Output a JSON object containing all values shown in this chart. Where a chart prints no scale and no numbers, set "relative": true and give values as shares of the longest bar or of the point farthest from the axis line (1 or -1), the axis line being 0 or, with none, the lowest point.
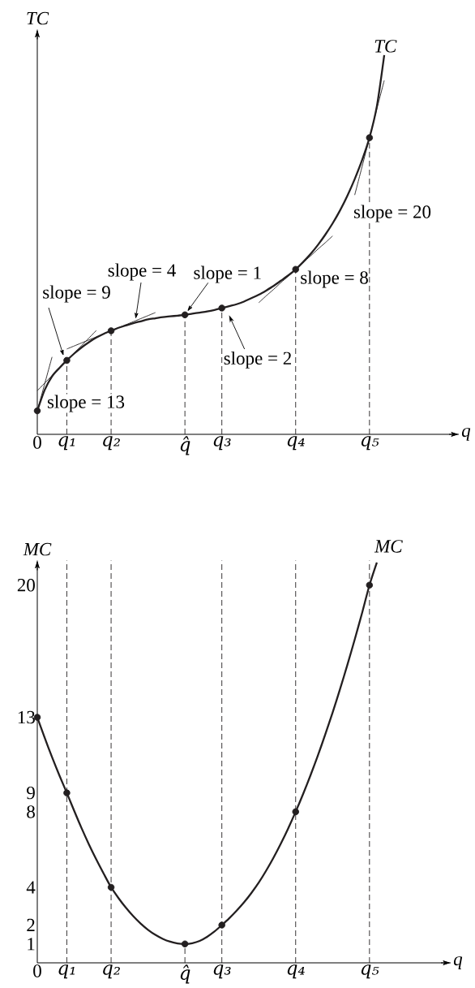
{
  "chart_data": [
    {
      "type": "line",
      "relative": true,
      "xlabel": "q",
      "ylabel": "TC",
      "categories": [
        "0",
        null,
        null,
        null,
        "q₁",
        null,
        null,
        null,
        null,
        null,
        "q₂",
        null,
        null,
        null,
        null,
        null,
        null,
        null,
        null,
        null,
        "q̂",
        null,
        null,
        null,
        null,
        "q₃",
        null,
        null,
        null,
        null,
        null,
        null,
        null,
        null,
        null,
        "q₄",
        null,
        null,
        null,
        null,
        null,
        null,
        null,
        null,
        null,
        "q₅",
        null,
        null
      ],
      "series": [
        {
          "color": "#231f20",
          "line_style": "solid",
          "marker": "none",
          "values": [
            0.062,
            0.133,
            0.204,
            null,
            null,
            null,
            null,
            null,
            null,
            null,
            null,
            null,
            null,
            null,
            null,
            null,
            null,
            null,
            null,
            null,
            null,
            null,
            null,
            null,
            null,
            null,
            null,
            null,
            null,
            null,
            null,
            null,
            null,
            null,
            null,
            null,
            null,
            null,
            null,
            null,
            null,
            null,
            null,
            null,
            null,
            null,
            null,
            null
          ]
        },
        {
          "color": "#231f20",
          "line_style": "solid",
          "marker": "none",
          "values": [
            0.115,
            0.135,
            0.155,
            0.175,
            0.195,
            0.214,
            0.234,
            0.254,
            0.274,
            null,
            null,
            null,
            null,
            null,
            null,
            null,
            null,
            null,
            null,
            null,
            null,
            null,
            null,
            null,
            null,
            null,
            null,
            null,
            null,
            null,
            null,
            null,
            null,
            null,
            null,
            null,
            null,
            null,
            null,
            null,
            null,
            null,
            null,
            null,
            null,
            null,
            null,
            null
          ]
        },
        {
          "color": "#231f20",
          "line_style": "solid",
          "marker": "none",
          "values": [
            null,
            null,
            null,
            null,
            0.225,
            0.233,
            0.241,
            0.249,
            0.257,
            0.265,
            0.273,
            0.281,
            0.289,
            0.297,
            0.305,
            0.313,
            0.321,
            null,
            null,
            null,
            null,
            null,
            null,
            null,
            null,
            null,
            null,
            null,
            null,
            null,
            null,
            null,
            null,
            null,
            null,
            null,
            null,
            null,
            null,
            null,
            null,
            null,
            null,
            null,
            null,
            null,
            null,
            null
          ]
        },
        {
          "color": "#231f20",
          "line_style": "solid",
          "marker": "none",
          "values": [
            null,
            null,
            null,
            null,
            null,
            null,
            null,
            null,
            null,
            null,
            null,
            null,
            null,
            null,
            null,
            null,
            null,
            null,
            null,
            null,
            null,
            null,
            null,
            null,
            null,
            null,
            null,
            null,
            null,
            null,
            0.347,
            0.365,
            0.382,
            0.4,
            0.417,
            0.435,
            0.453,
            0.47,
            0.488,
            0.505,
            0.523,
            null,
            null,
            null,
            null,
            null,
            null,
            null
          ]
        },
        {
          "color": "#231f20",
          "line_style": "solid",
          "marker": "none",
          "values": [
            null,
            null,
            null,
            null,
            null,
            null,
            null,
            null,
            null,
            null,
            null,
            null,
            null,
            null,
            null,
            null,
            null,
            null,
            null,
            null,
            null,
            null,
            null,
            null,
            null,
            null,
            null,
            null,
            null,
            null,
            null,
            null,
            null,
            null,
            null,
            null,
            null,
            null,
            null,
            null,
            null,
            null,
            null,
            0.631,
            0.706,
            0.782,
            0.858,
            0.933
          ]
        },
        {
          "name": "TC",
          "color": "#231f20",
          "line_style": "solid",
          "marker": "none",
          "values": [
            0.062,
            0.117,
            0.153,
            0.175,
            0.195,
            0.213,
            0.229,
            0.243,
            0.255,
            0.265,
            0.273,
            0.281,
            0.287,
            0.293,
            0.298,
            0.303,
            0.306,
            0.309,
            0.311,
            0.313,
            0.315,
            0.318,
            0.321,
            0.324,
            0.328,
            0.333,
            0.338,
            0.343,
            0.35,
            0.359,
            0.368,
            0.379,
            0.391,
            0.405,
            0.419,
            0.435,
            0.454,
            0.475,
            0.499,
            0.526,
            0.556,
            0.59,
            0.629,
            0.673,
            0.723,
            0.782,
            0.865,
            1.0
          ]
        },
        {
          "type": "lollipop",
          "color": "#231f20",
          "line_style": "dashed",
          "marker": "circle",
          "values": [
            null,
            null,
            null,
            null,
            0.195,
            null,
            null,
            null,
            null,
            null,
            0.273,
            null,
            null,
            null,
            null,
            null,
            null,
            null,
            null,
            null,
            0.315,
            null,
            null,
            null,
            null,
            0.333,
            null,
            null,
            null,
            null,
            null,
            null,
            null,
            null,
            null,
            0.435,
            null,
            null,
            null,
            null,
            null,
            null,
            null,
            null,
            null,
            0.782,
            null,
            null
          ]
        },
        {
          "type": "scatter",
          "color": "#231f20",
          "marker": "circle",
          "values": [
            0.062,
            null,
            null,
            null,
            null,
            null,
            null,
            null,
            null,
            null,
            null,
            null,
            null,
            null,
            null,
            null,
            null,
            null,
            null,
            null,
            null,
            null,
            null,
            null,
            null,
            null,
            null,
            null,
            null,
            null,
            null,
            null,
            null,
            null,
            null,
            null,
            null,
            null,
            null,
            null,
            null,
            null,
            null,
            null,
            null,
            null,
            null,
            null
          ]
        }
      ],
      "annotations": [
        {
          "text": "slope = 13",
          "x": "0",
          "y": 0.062
        },
        "slope = 9",
        "slope = 4",
        {
          "text": "slope = 1",
          "x": "q̂",
          "y": 0.315
        },
        {
          "text": "slope = 2",
          "x": "q₃",
          "y": 0.333
        },
        {
          "text": "slope = 8",
          "x": "q₄",
          "y": 0.435
        },
        "slope = 20"
      ]
    },
    {
      "type": "line",
      "xlabel": "q",
      "ylabel": "MC",
      "ylim": [
        0,
        21.3
      ],
      "yticks": [
        1,
        2,
        4,
        8,
        9,
        13,
        20
      ],
      "categories": [
        "0",
        null,
        null,
        null,
        "q₁",
        null,
        null,
        null,
        null,
        null,
        "q₂",
        null,
        null,
        null,
        null,
        null,
        null,
        null,
        null,
        null,
        "q̂",
        null,
        null,
        null,
        null,
        "q₃",
        null,
        null,
        null,
        null,
        null,
        null,
        null,
        null,
        null,
        "q₄",
        null,
        null,
        null,
        null,
        null,
        null,
        null,
        null,
        null,
        "q₅",
        null,
        null
      ],
      "ref_lines": [
        {
          "axis": "x",
          "value": "q₁",
          "color": "#231f20",
          "line_style": "dashed"
        },
        {
          "axis": "x",
          "value": "q₂",
          "color": "#231f20",
          "line_style": "dashed"
        },
        {
          "axis": "x",
          "value": "q₃",
          "color": "#231f20",
          "line_style": "dashed"
        },
        {
          "axis": "x",
          "value": "q₄",
          "color": "#231f20",
          "line_style": "dashed"
        },
        {
          "axis": "x",
          "value": "q₅",
          "color": "#231f20",
          "line_style": "dashed"
        }
      ],
      "series": [
        {
          "name": "MC",
          "color": "#231f20",
          "line_style": "solid",
          "marker": "none",
          "values": [
            13,
            11.92,
            10.89,
            9.92,
            9,
            8.05,
            7.13,
            6.27,
            5.47,
            4.72,
            4,
            3.43,
            2.92,
            2.47,
            2.08,
            1.75,
            1.48,
            1.27,
            1.12,
            1.03,
            1,
            1.04,
            1.16,
            1.38,
            1.66,
            2,
            2.36,
            2.76,
            3.2,
            3.7,
            4.25,
            4.88,
            5.57,
            6.32,
            7.13,
            8,
            8.93,
            9.92,
            10.97,
            12.08,
            13.25,
            14.48,
            15.77,
            17.12,
            18.53,
            20,
            21.2,
            null
          ]
        },
        {
          "type": "lollipop",
          "color": "#231f20",
          "line_style": "dashed",
          "marker": "circle",
          "values": [
            null,
            null,
            null,
            null,
            null,
            null,
            null,
            null,
            null,
            null,
            null,
            null,
            null,
            null,
            null,
            null,
            null,
            null,
            null,
            null,
            1,
            null,
            null,
            null,
            null,
            null,
            null,
            null,
            null,
            null,
            null,
            null,
            null,
            null,
            null,
            null,
            null,
            null,
            null,
            null,
            null,
            null,
            null,
            null,
            null,
            null,
            null,
            null
          ]
        },
        {
          "type": "scatter",
          "color": "#231f20",
          "marker": "circle",
          "values": [
            13,
            null,
            null,
            null,
            9,
            null,
            null,
            null,
            null,
            null,
            4,
            null,
            null,
            null,
            null,
            null,
            null,
            null,
            null,
            null,
            null,
            null,
            null,
            null,
            null,
            2,
            null,
            null,
            null,
            null,
            null,
            null,
            null,
            null,
            null,
            8,
            null,
            null,
            null,
            null,
            null,
            null,
            null,
            null,
            null,
            20,
            null,
            null
          ]
        }
      ]
    }
  ]
}
